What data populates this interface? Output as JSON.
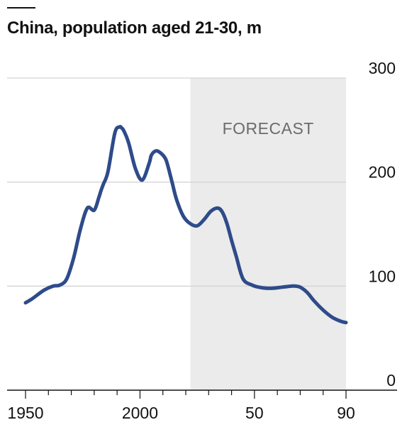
{
  "chart_data": {
    "type": "line",
    "title": "China, population aged 21-30, m",
    "xlabel": "",
    "ylabel": "",
    "x_range": [
      1950,
      2090
    ],
    "ylim": [
      0,
      300
    ],
    "y_ticks": [
      0,
      100,
      200,
      300
    ],
    "x_tick_labels": [
      {
        "year": 1950,
        "label": "1950"
      },
      {
        "year": 2000,
        "label": "2000"
      },
      {
        "year": 2050,
        "label": "50"
      },
      {
        "year": 2090,
        "label": "90"
      }
    ],
    "x_minor_ticks": [
      1960,
      1970,
      1980,
      1990,
      2010,
      2020,
      2030,
      2040,
      2060,
      2070,
      2080
    ],
    "grid": true,
    "forecast": {
      "label": "FORECAST",
      "start": 2022,
      "end": 2090,
      "color": "#ebebeb"
    },
    "series": [
      {
        "color": "#2e4b8a",
        "x": [
          1950,
          1953,
          1958,
          1962,
          1965,
          1968,
          1971,
          1974,
          1977,
          1980,
          1982,
          1983,
          1984,
          1986,
          1989,
          1991,
          1992,
          1993,
          1995,
          1998,
          2001,
          2004,
          2005,
          2007,
          2009,
          2011,
          2012,
          2014,
          2016,
          2019,
          2022,
          2025,
          2028,
          2031,
          2034,
          2036,
          2038,
          2040,
          2042,
          2045,
          2049,
          2052,
          2055,
          2058,
          2062,
          2066,
          2068,
          2070,
          2073,
          2076,
          2080,
          2084,
          2088,
          2090
        ],
        "values": [
          84,
          88,
          96,
          100,
          101,
          107,
          127,
          155,
          175,
          173,
          185,
          192,
          198,
          210,
          247,
          253,
          252,
          249,
          238,
          213,
          202,
          218,
          226,
          230,
          228,
          223,
          217,
          200,
          183,
          167,
          160,
          158,
          164,
          172,
          175,
          171,
          160,
          144,
          129,
          107,
          101,
          99,
          98,
          98,
          99,
          100,
          100,
          99,
          94,
          86,
          77,
          70,
          66,
          65
        ]
      }
    ]
  }
}
